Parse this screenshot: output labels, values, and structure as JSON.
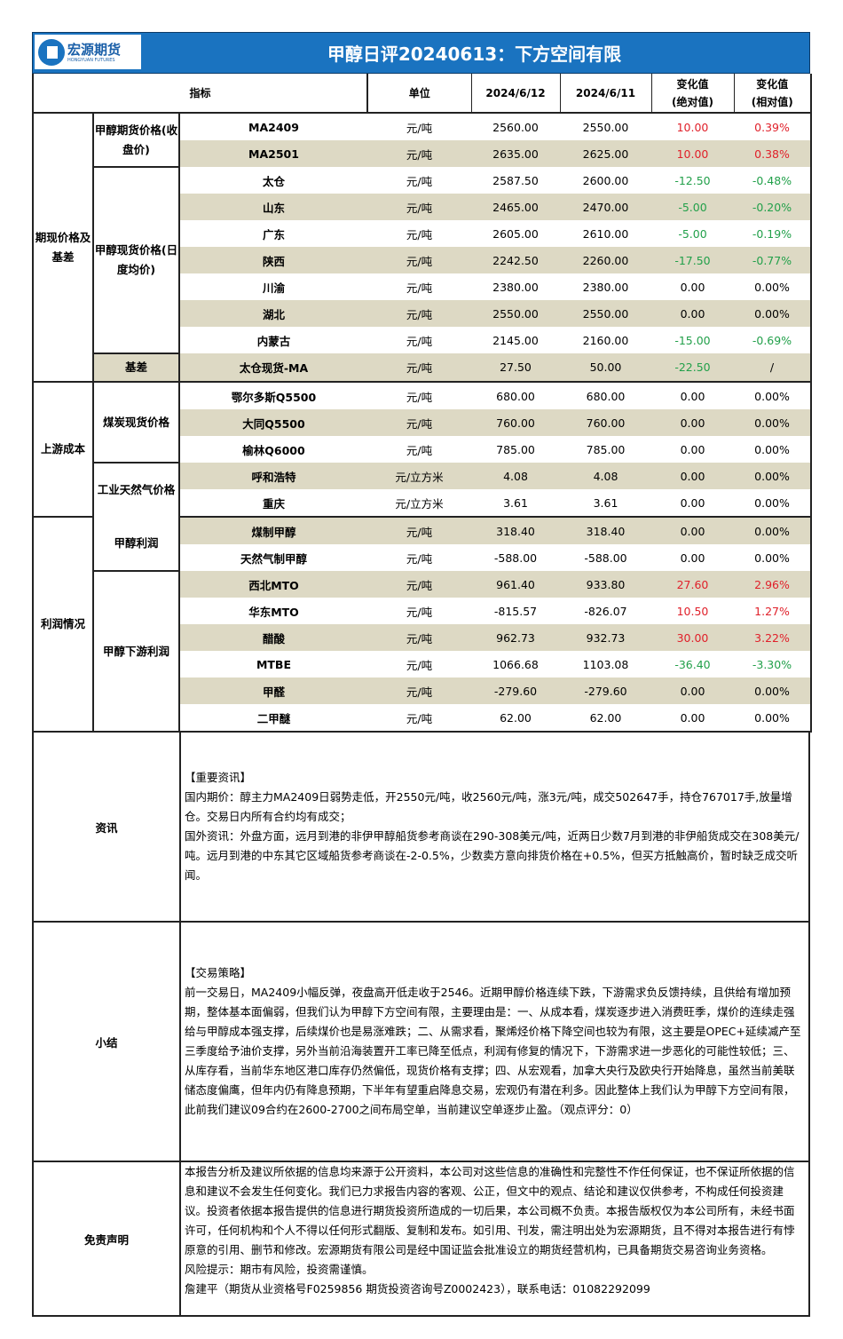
{
  "logo": {
    "name": "宏源期货",
    "sub": "HONGYUAN FUTURES"
  },
  "title": "甲醇日评20240613：下方空间有限",
  "headers": {
    "indicator": "指标",
    "unit": "单位",
    "d1": "2024/6/12",
    "d2": "2024/6/11",
    "abs": "变化值\n(绝对值)",
    "rel": "变化值\n(相对值)"
  },
  "colors": {
    "banner": "#1a73c0",
    "shade": "#ddd9c4",
    "up": "#e0202a",
    "down": "#22a04a"
  },
  "groups": [
    {
      "label": "期现价格及基差",
      "subs": [
        {
          "label": "甲醇期货价格(收盘价)",
          "rows": [
            [
              "MA2409",
              "元/吨",
              "2560.00",
              "2550.00",
              "10.00",
              "0.39%"
            ],
            [
              "MA2501",
              "元/吨",
              "2635.00",
              "2625.00",
              "10.00",
              "0.38%"
            ]
          ]
        },
        {
          "label": "甲醇现货价格(日度均价)",
          "rows": [
            [
              "太仓",
              "元/吨",
              "2587.50",
              "2600.00",
              "-12.50",
              "-0.48%"
            ],
            [
              "山东",
              "元/吨",
              "2465.00",
              "2470.00",
              "-5.00",
              "-0.20%"
            ],
            [
              "广东",
              "元/吨",
              "2605.00",
              "2610.00",
              "-5.00",
              "-0.19%"
            ],
            [
              "陕西",
              "元/吨",
              "2242.50",
              "2260.00",
              "-17.50",
              "-0.77%"
            ],
            [
              "川渝",
              "元/吨",
              "2380.00",
              "2380.00",
              "0.00",
              "0.00%"
            ],
            [
              "湖北",
              "元/吨",
              "2550.00",
              "2550.00",
              "0.00",
              "0.00%"
            ],
            [
              "内蒙古",
              "元/吨",
              "2145.00",
              "2160.00",
              "-15.00",
              "-0.69%"
            ]
          ]
        },
        {
          "label": "基差",
          "rows": [
            [
              "太仓现货-MA",
              "元/吨",
              "27.50",
              "50.00",
              "-22.50",
              "/"
            ]
          ]
        }
      ]
    },
    {
      "label": "上游成本",
      "subs": [
        {
          "label": "煤炭现货价格",
          "rows": [
            [
              "鄂尔多斯Q5500",
              "元/吨",
              "680.00",
              "680.00",
              "0.00",
              "0.00%"
            ],
            [
              "大同Q5500",
              "元/吨",
              "760.00",
              "760.00",
              "0.00",
              "0.00%"
            ],
            [
              "榆林Q6000",
              "元/吨",
              "785.00",
              "785.00",
              "0.00",
              "0.00%"
            ]
          ]
        },
        {
          "label": "工业天然气价格",
          "rows": [
            [
              "呼和浩特",
              "元/立方米",
              "4.08",
              "4.08",
              "0.00",
              "0.00%"
            ],
            [
              "重庆",
              "元/立方米",
              "3.61",
              "3.61",
              "0.00",
              "0.00%"
            ]
          ]
        }
      ]
    },
    {
      "label": "利润情况",
      "subs": [
        {
          "label": "甲醇利润",
          "rows": [
            [
              "煤制甲醇",
              "元/吨",
              "318.40",
              "318.40",
              "0.00",
              "0.00%"
            ],
            [
              "天然气制甲醇",
              "元/吨",
              "-588.00",
              "-588.00",
              "0.00",
              "0.00%"
            ]
          ]
        },
        {
          "label": "甲醇下游利润",
          "rows": [
            [
              "西北MTO",
              "元/吨",
              "961.40",
              "933.80",
              "27.60",
              "2.96%"
            ],
            [
              "华东MTO",
              "元/吨",
              "-815.57",
              "-826.07",
              "10.50",
              "1.27%"
            ],
            [
              "醋酸",
              "元/吨",
              "962.73",
              "932.73",
              "30.00",
              "3.22%"
            ],
            [
              "MTBE",
              "元/吨",
              "1066.68",
              "1103.08",
              "-36.40",
              "-3.30%"
            ],
            [
              "甲醛",
              "元/吨",
              "-279.60",
              "-279.60",
              "0.00",
              "0.00%"
            ],
            [
              "二甲醚",
              "元/吨",
              "62.00",
              "62.00",
              "0.00",
              "0.00%"
            ]
          ]
        }
      ]
    }
  ],
  "news": {
    "label": "资讯",
    "lines": [
      "【重要资讯】",
      "国内期价：醇主力MA2409日弱势走低，开2550元/吨，收2560元/吨，涨3元/吨，成交502647手，持仓767017手,放量增仓。交易日内所有合约均有成交；",
      "国外资讯：外盘方面，远月到港的非伊甲醇船货参考商谈在290-308美元/吨，近两日少数7月到港的非伊船货成交在308美元/吨。远月到港的中东其它区域船货参考商谈在-2-0.5%，少数卖方意向排货价格在+0.5%，但买方抵触高价，暂时缺乏成交听闻。"
    ]
  },
  "summary": {
    "label": "小结",
    "lines": [
      "【交易策略】",
      "前一交易日，MA2409小幅反弹，夜盘高开低走收于2546。近期甲醇价格连续下跌，下游需求负反馈持续，且供给有增加预期，整体基本面偏弱，但我们认为甲醇下方空间有限，主要理由是：一、从成本看，煤炭逐步进入消费旺季，煤价的连续走强给与甲醇成本强支撑，后续煤价也是易涨难跌；二、从需求看，聚烯烃价格下降空间也较为有限，这主要是OPEC+延续减产至三季度给予油价支撑，另外当前沿海装置开工率已降至低点，利润有修复的情况下，下游需求进一步恶化的可能性较低；三、从库存看，当前华东地区港口库存仍然偏低，现货价格有支撑；四、从宏观看，加拿大央行及欧央行开始降息，虽然当前美联储态度偏鹰，但年内仍有降息预期，下半年有望重启降息交易，宏观仍有潜在利多。因此整体上我们认为甲醇下方空间有限，此前我们建议09合约在2600-2700之间布局空单，当前建议空单逐步止盈。（观点评分：0）"
    ]
  },
  "disclaimer": {
    "label": "免责声明",
    "lines": [
      "本报告分析及建议所依据的信息均来源于公开资料，本公司对这些信息的准确性和完整性不作任何保证，也不保证所依据的信息和建议不会发生任何变化。我们已力求报告内容的客观、公正，但文中的观点、结论和建议仅供参考，不构成任何投资建议。投资者依据本报告提供的信息进行期货投资所造成的一切后果，本公司概不负责。本报告版权仅为本公司所有，未经书面许可，任何机构和个人不得以任何形式翻版、复制和发布。如引用、刊发，需注明出处为宏源期货，且不得对本报告进行有悖原意的引用、删节和修改。宏源期货有限公司是经中国证监会批准设立的期货经营机构，已具备期货交易咨询业务资格。",
      "风险提示：期市有风险，投资需谨慎。",
      "詹建平（期货从业资格号F0259856  期货投资咨询号Z0002423），联系电话：01082292099"
    ]
  }
}
